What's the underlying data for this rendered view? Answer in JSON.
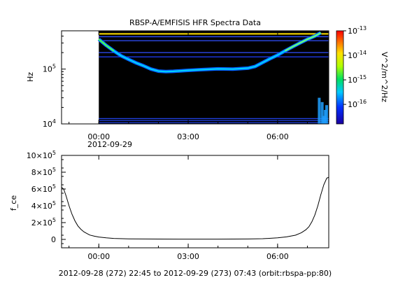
{
  "title": "RBSP-A/EMFISIS  HFR Spectra Data",
  "footer": "2012-09-28 (272) 22:45 to 2012-09-29 (273) 07:43 (orbit:rbspa-pp:80)",
  "chart_data": [
    {
      "type": "heatmap",
      "title": "RBSP-A/EMFISIS  HFR Spectra Data",
      "ylabel": "Hz",
      "yscale": "log",
      "ylim": [
        10000,
        500000
      ],
      "y_ticks": [
        {
          "value": 10000,
          "label": "10",
          "exp": "4"
        },
        {
          "value": 100000,
          "label": "10",
          "exp": "5"
        }
      ],
      "x_time_range": [
        "2012-09-28 22:45",
        "2012-09-29 07:43"
      ],
      "x_ticks": [
        {
          "hour": 0,
          "label": "00:00"
        },
        {
          "hour": 3,
          "label": "03:00"
        },
        {
          "hour": 6,
          "label": "06:00"
        }
      ],
      "x_date_label": "2012-09-29",
      "data_start_hour": 0.0,
      "colorbar": {
        "label": "V^2/m^2/Hz",
        "scale": "log",
        "range": [
          1.6e-17,
          1e-13
        ],
        "ticks": [
          {
            "value": 1e-13,
            "label": "10",
            "exp": "-13"
          },
          {
            "value": 1e-14,
            "label": "10",
            "exp": "-14"
          },
          {
            "value": 1e-15,
            "label": "10",
            "exp": "-15"
          },
          {
            "value": 1e-16,
            "label": "10",
            "exp": "-16"
          }
        ]
      },
      "upper_hybrid_line_hz": [
        [
          0.0,
          350000
        ],
        [
          0.25,
          270000
        ],
        [
          0.5,
          215000
        ],
        [
          0.75,
          175000
        ],
        [
          1.0,
          150000
        ],
        [
          1.25,
          130000
        ],
        [
          1.5,
          115000
        ],
        [
          1.75,
          100000
        ],
        [
          2.0,
          92000
        ],
        [
          2.25,
          90000
        ],
        [
          2.5,
          91000
        ],
        [
          3.0,
          95000
        ],
        [
          3.5,
          98000
        ],
        [
          4.0,
          101000
        ],
        [
          4.5,
          100000
        ],
        [
          5.0,
          104000
        ],
        [
          5.25,
          112000
        ],
        [
          5.5,
          132000
        ],
        [
          5.75,
          155000
        ],
        [
          6.0,
          180000
        ],
        [
          6.25,
          215000
        ],
        [
          6.5,
          255000
        ],
        [
          6.75,
          300000
        ],
        [
          7.0,
          350000
        ],
        [
          7.25,
          400000
        ],
        [
          7.45,
          460000
        ]
      ],
      "constant_lines_hz": [
        440000,
        390000,
        330000,
        200000,
        167000,
        12500,
        11500,
        10500
      ]
    },
    {
      "type": "line",
      "ylabel": "f_ce",
      "ylim": [
        -100000,
        1000000
      ],
      "y_ticks": [
        {
          "value": 0,
          "label": "0",
          "exp": ""
        },
        {
          "value": 200000,
          "label": "2×10",
          "exp": "5"
        },
        {
          "value": 400000,
          "label": "4×10",
          "exp": "5"
        },
        {
          "value": 600000,
          "label": "6×10",
          "exp": "5"
        },
        {
          "value": 800000,
          "label": "8×10",
          "exp": "5"
        },
        {
          "value": 1000000,
          "label": "10×10",
          "exp": "5"
        }
      ],
      "x_time_range": [
        "2012-09-28 22:45",
        "2012-09-29 07:43"
      ],
      "x_ticks": [
        {
          "hour": 0,
          "label": "00:00"
        },
        {
          "hour": 3,
          "label": "03:00"
        },
        {
          "hour": 6,
          "label": "06:00"
        }
      ],
      "series": [
        {
          "x_hours": [
            -1.25,
            -1.18,
            -1.1,
            -1.0,
            -0.9,
            -0.8,
            -0.7,
            -0.6,
            -0.5,
            -0.4,
            -0.3,
            -0.15,
            0.0,
            0.25,
            0.5,
            1.0,
            1.5,
            2.0,
            3.0,
            4.0,
            5.0,
            5.5,
            6.0,
            6.3,
            6.6,
            6.8,
            6.95,
            7.05,
            7.15,
            7.25,
            7.35,
            7.45,
            7.55,
            7.65,
            7.717
          ],
          "values": [
            620000,
            600000,
            520000,
            400000,
            300000,
            220000,
            160000,
            120000,
            90000,
            70000,
            52000,
            38000,
            28000,
            18000,
            12000,
            7000,
            5000,
            4000,
            3000,
            3000,
            5000,
            8000,
            18000,
            30000,
            50000,
            80000,
            115000,
            150000,
            210000,
            290000,
            400000,
            530000,
            650000,
            730000,
            740000
          ]
        }
      ]
    }
  ]
}
